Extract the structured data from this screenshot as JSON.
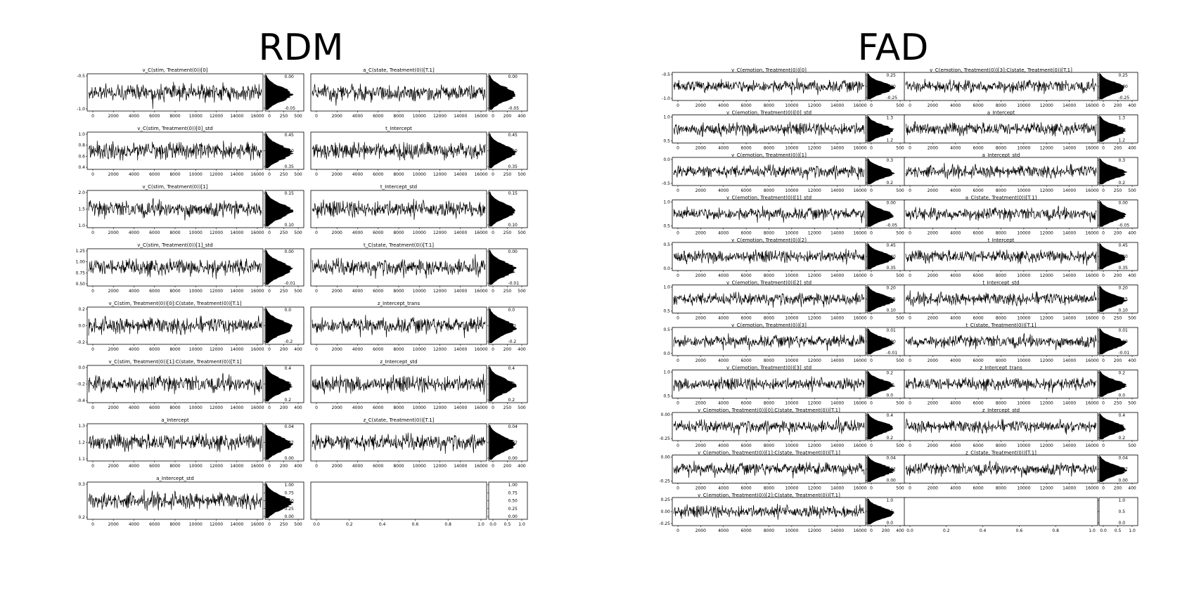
{
  "panels": [
    {
      "id": "rdm",
      "title": "RDM",
      "trace_xticks": [
        "0",
        "2000",
        "4000",
        "6000",
        "8000",
        "10000",
        "12000",
        "14000",
        "16000"
      ],
      "rows": [
        [
          {
            "title": "v_C(stim, Treatment(0))[0]",
            "yticks": [
              "-0.5",
              "-1.0"
            ],
            "hist_yticks": [
              "0.00",
              "-0.05"
            ],
            "hist_xticks": [
              "0",
              "250",
              "500"
            ]
          },
          {
            "title": "a_C(state, Treatment(0))[T.1]",
            "yticks": [],
            "hist_yticks": [
              "0.00",
              "-0.05"
            ],
            "hist_xticks": [
              "0",
              "200",
              "400"
            ]
          }
        ],
        [
          {
            "title": "v_C(stim, Treatment(0))[0]_std",
            "yticks": [
              "1.0",
              "0.8",
              "0.6",
              "0.4"
            ],
            "hist_yticks": [
              "0.45",
              "0.40",
              "0.35"
            ],
            "hist_xticks": [
              "0",
              "250",
              "500"
            ]
          },
          {
            "title": "t_Intercept",
            "yticks": [],
            "hist_yticks": [
              "0.45",
              "0.40",
              "0.35"
            ],
            "hist_xticks": [
              "0",
              "250",
              "500"
            ]
          }
        ],
        [
          {
            "title": "v_C(stim, Treatment(0))[1]",
            "yticks": [
              "2.0",
              "1.5",
              "1.0"
            ],
            "hist_yticks": [
              "0.15",
              "0.10"
            ],
            "hist_xticks": [
              "0",
              "250",
              "500"
            ]
          },
          {
            "title": "t_Intercept_std",
            "yticks": [],
            "hist_yticks": [
              "0.15",
              "0.10"
            ],
            "hist_xticks": [
              "0",
              "250",
              "500"
            ]
          }
        ],
        [
          {
            "title": "v_C(stim, Treatment(0))[1]_std",
            "yticks": [
              "1.25",
              "1.00",
              "0.75",
              "0.50"
            ],
            "hist_yticks": [
              "0.00",
              "-0.01"
            ],
            "hist_xticks": [
              "0",
              "250",
              "500"
            ]
          },
          {
            "title": "t_C(state, Treatment(0))[T.1]",
            "yticks": [],
            "hist_yticks": [
              "0.00",
              "-0.01"
            ],
            "hist_xticks": [
              "0",
              "250",
              "500"
            ]
          }
        ],
        [
          {
            "title": "v_C(stim, Treatment(0))[0]:C(state, Treatment(0))[T.1]",
            "yticks": [
              "0.2",
              "0.0",
              "-0.2"
            ],
            "hist_yticks": [
              "0.0",
              "-0.1",
              "-0.2"
            ],
            "hist_xticks": [
              "0",
              "200",
              "400"
            ]
          },
          {
            "title": "z_Intercept_trans",
            "yticks": [],
            "hist_yticks": [
              "0.0",
              "-0.1",
              "-0.2"
            ],
            "hist_xticks": [
              "0",
              "200",
              "400"
            ]
          }
        ],
        [
          {
            "title": "v_C(stim, Treatment(0))[1]:C(state, Treatment(0))[T.1]",
            "yticks": [
              "0.0",
              "-0.2",
              "-0.4"
            ],
            "hist_yticks": [
              "0.4",
              "0.3",
              "0.2"
            ],
            "hist_xticks": [
              "0",
              "200",
              "400"
            ]
          },
          {
            "title": "z_Intercept_std",
            "yticks": [],
            "hist_yticks": [
              "0.4",
              "0.3",
              "0.2"
            ],
            "hist_xticks": [
              "0",
              "250",
              "500"
            ]
          }
        ],
        [
          {
            "title": "a_Intercept",
            "yticks": [
              "1.3",
              "1.2",
              "1.1"
            ],
            "hist_yticks": [
              "0.04",
              "0.02",
              "0.00"
            ],
            "hist_xticks": [
              "0",
              "200",
              "400"
            ]
          },
          {
            "title": "z_C(state, Treatment(0))[T.1]",
            "yticks": [],
            "hist_yticks": [
              "0.04",
              "0.02",
              "0.00"
            ],
            "hist_xticks": [
              "0",
              "200",
              "400"
            ]
          }
        ],
        [
          {
            "title": "a_Intercept_std",
            "yticks": [
              "0.3",
              "0.2"
            ],
            "hist_yticks": [
              "1.00",
              "0.75",
              "0.50",
              "0.25",
              "0.00"
            ],
            "hist_xticks": [
              "0",
              "250",
              "500"
            ]
          },
          {
            "title": "",
            "empty": true,
            "yticks": [],
            "hist_yticks": [
              "1.00",
              "0.75",
              "0.50",
              "0.25",
              "0.00"
            ],
            "hist_xticks": [
              "0.0",
              "0.5",
              "1.0"
            ],
            "empty_xticks": [
              "0.0",
              "0.2",
              "0.4",
              "0.6",
              "0.8",
              "1.0"
            ]
          }
        ]
      ]
    },
    {
      "id": "fad",
      "title": "FAD",
      "trace_xticks": [
        "0",
        "2000",
        "4000",
        "6000",
        "8000",
        "10000",
        "12000",
        "14000",
        "16000"
      ],
      "rows": [
        [
          {
            "title": "v_C(emotion, Treatment(0))[0]",
            "yticks": [
              "-0.5",
              "-1.0"
            ],
            "hist_yticks": [
              "0.25",
              "0.00",
              "-0.25"
            ],
            "hist_xticks": [
              "0",
              "500"
            ]
          },
          {
            "title": "v_C(emotion, Treatment(0))[3]:C(state, Treatment(0))[T.1]",
            "yticks": [],
            "hist_yticks": [
              "0.25",
              "0.00",
              "-0.25"
            ],
            "hist_xticks": [
              "0",
              "200",
              "400"
            ]
          }
        ],
        [
          {
            "title": "v_C(emotion, Treatment(0))[0]_std",
            "yticks": [
              "1.0",
              "0.5"
            ],
            "hist_yticks": [
              "1.3",
              "1.2"
            ],
            "hist_xticks": [
              "0",
              "500"
            ]
          },
          {
            "title": "a_Intercept",
            "yticks": [],
            "hist_yticks": [
              "1.3",
              "1.2"
            ],
            "hist_xticks": [
              "0",
              "200",
              "400"
            ]
          }
        ],
        [
          {
            "title": "v_C(emotion, Treatment(0))[1]",
            "yticks": [
              "0.0",
              "-0.5"
            ],
            "hist_yticks": [
              "0.3",
              "0.2"
            ],
            "hist_xticks": [
              "0",
              "500"
            ]
          },
          {
            "title": "a_Intercept_std",
            "yticks": [],
            "hist_yticks": [
              "0.3",
              "0.2"
            ],
            "hist_xticks": [
              "0",
              "250",
              "500"
            ]
          }
        ],
        [
          {
            "title": "v_C(emotion, Treatment(0))[1]_std",
            "yticks": [
              "1.0",
              "0.5"
            ],
            "hist_yticks": [
              "0.00",
              "-0.05"
            ],
            "hist_xticks": [
              "0",
              "500"
            ]
          },
          {
            "title": "a_C(state, Treatment(0))[T.1]",
            "yticks": [],
            "hist_yticks": [
              "0.00",
              "-0.05"
            ],
            "hist_xticks": [
              "0",
              "200",
              "400"
            ]
          }
        ],
        [
          {
            "title": "v_C(emotion, Treatment(0))[2]",
            "yticks": [
              "0.5",
              "0.0"
            ],
            "hist_yticks": [
              "0.45",
              "0.40",
              "0.35"
            ],
            "hist_xticks": [
              "0",
              "500"
            ]
          },
          {
            "title": "t_Intercept",
            "yticks": [],
            "hist_yticks": [
              "0.45",
              "0.40",
              "0.35"
            ],
            "hist_xticks": [
              "0",
              "200",
              "400"
            ]
          }
        ],
        [
          {
            "title": "v_C(emotion, Treatment(0))[2]_std",
            "yticks": [
              "1.0",
              "0.5"
            ],
            "hist_yticks": [
              "0.20",
              "0.15",
              "0.10"
            ],
            "hist_xticks": [
              "0",
              "500"
            ]
          },
          {
            "title": "t_Intercept_std",
            "yticks": [],
            "hist_yticks": [
              "0.20",
              "0.15",
              "0.10"
            ],
            "hist_xticks": [
              "0",
              "250",
              "500"
            ]
          }
        ],
        [
          {
            "title": "v_C(emotion, Treatment(0))[3]",
            "yticks": [
              "0.5",
              "0.0"
            ],
            "hist_yticks": [
              "0.01",
              "0.00",
              "-0.01"
            ],
            "hist_xticks": [
              "0",
              "500"
            ]
          },
          {
            "title": "t_C(state, Treatment(0))[T.1]",
            "yticks": [],
            "hist_yticks": [
              "0.01",
              "0.00",
              "-0.01"
            ],
            "hist_xticks": [
              "0",
              "200",
              "400"
            ]
          }
        ],
        [
          {
            "title": "v_C(emotion, Treatment(0))[3]_std",
            "yticks": [
              "1.0",
              "0.5"
            ],
            "hist_yticks": [
              "0.2",
              "0.0"
            ],
            "hist_xticks": [
              "0",
              "500"
            ]
          },
          {
            "title": "z_Intercept_trans",
            "yticks": [],
            "hist_yticks": [
              "0.2",
              "0.0"
            ],
            "hist_xticks": [
              "0",
              "250",
              "500"
            ]
          }
        ],
        [
          {
            "title": "v_C(emotion, Treatment(0))[0]:C(state, Treatment(0))[T.1]",
            "yticks": [
              "0.00",
              "-0.25"
            ],
            "hist_yticks": [
              "0.4",
              "0.2"
            ],
            "hist_xticks": [
              "0",
              "500"
            ]
          },
          {
            "title": "z_Intercept_std",
            "yticks": [],
            "hist_yticks": [
              "0.4",
              "0.2"
            ],
            "hist_xticks": [
              "0",
              "500"
            ]
          }
        ],
        [
          {
            "title": "v_C(emotion, Treatment(0))[1]:C(state, Treatment(0))[T.1]",
            "yticks": [
              "0.00",
              "-0.25"
            ],
            "hist_yticks": [
              "0.04",
              "0.02",
              "0.00"
            ],
            "hist_xticks": [
              "0",
              "500"
            ]
          },
          {
            "title": "z_C(state, Treatment(0))[T.1]",
            "yticks": [],
            "hist_yticks": [
              "0.04",
              "0.02",
              "0.00"
            ],
            "hist_xticks": [
              "0",
              "200",
              "400"
            ]
          }
        ],
        [
          {
            "title": "v_C(emotion, Treatment(0))[2]:C(state, Treatment(0))[T.1]",
            "yticks": [
              "0.25",
              "0.00",
              "-0.25"
            ],
            "hist_yticks": [
              "1.0",
              "0.5",
              "0.0"
            ],
            "hist_xticks": [
              "0",
              "200",
              "400"
            ]
          },
          {
            "title": "",
            "empty": true,
            "yticks": [],
            "hist_yticks": [
              "1.0",
              "0.5",
              "0.0"
            ],
            "hist_xticks": [
              "0.0",
              "0.5",
              "1.0"
            ],
            "empty_xticks": [
              "0.0",
              "0.2",
              "0.4",
              "0.6",
              "0.8",
              "1.0"
            ]
          }
        ]
      ]
    }
  ],
  "chart_data": [
    {
      "type": "line",
      "title": "RDM",
      "description_of_traces": "MCMC trace plots (16000 samples each) with marginal histograms",
      "x_range": [
        0,
        16000
      ],
      "series": [
        {
          "name": "v_C(stim, Treatment(0))[0]",
          "center": -1.0
        },
        {
          "name": "a_C(state, Treatment(0))[T.1]",
          "center": -0.04
        },
        {
          "name": "v_C(stim, Treatment(0))[0]_std",
          "center": 0.6
        },
        {
          "name": "t_Intercept",
          "center": 0.4
        },
        {
          "name": "v_C(stim, Treatment(0))[1]",
          "center": 1.35
        },
        {
          "name": "t_Intercept_std",
          "center": 0.1
        },
        {
          "name": "v_C(stim, Treatment(0))[1]_std",
          "center": 0.75
        },
        {
          "name": "t_C(state, Treatment(0))[T.1]",
          "center": 0.0
        },
        {
          "name": "v_C(stim, Treatment(0))[0]:C(state, Treatment(0))[T.1]",
          "center": 0.0
        },
        {
          "name": "z_Intercept_trans",
          "center": -0.1
        },
        {
          "name": "v_C(stim, Treatment(0))[1]:C(state, Treatment(0))[T.1]",
          "center": -0.2
        },
        {
          "name": "z_Intercept_std",
          "center": 0.25
        },
        {
          "name": "a_Intercept",
          "center": 1.25
        },
        {
          "name": "z_C(state, Treatment(0))[T.1]",
          "center": 0.02
        },
        {
          "name": "a_Intercept_std",
          "center": 0.2
        }
      ]
    },
    {
      "type": "line",
      "title": "FAD",
      "description_of_traces": "MCMC trace plots (16000 samples each) with marginal histograms",
      "x_range": [
        0,
        16000
      ],
      "series": [
        {
          "name": "v_C(emotion, Treatment(0))[0]",
          "center": -0.8
        },
        {
          "name": "v_C(emotion, Treatment(0))[3]:C(state, Treatment(0))[T.1]",
          "center": 0.0
        },
        {
          "name": "v_C(emotion, Treatment(0))[0]_std",
          "center": 0.6
        },
        {
          "name": "a_Intercept",
          "center": 1.22
        },
        {
          "name": "v_C(emotion, Treatment(0))[1]",
          "center": -0.3
        },
        {
          "name": "a_Intercept_std",
          "center": 0.2
        },
        {
          "name": "v_C(emotion, Treatment(0))[1]_std",
          "center": 0.55
        },
        {
          "name": "a_C(state, Treatment(0))[T.1]",
          "center": -0.02
        },
        {
          "name": "v_C(emotion, Treatment(0))[2]",
          "center": 0.1
        },
        {
          "name": "t_Intercept",
          "center": 0.4
        },
        {
          "name": "v_C(emotion, Treatment(0))[2]_std",
          "center": 0.6
        },
        {
          "name": "t_Intercept_std",
          "center": 0.13
        },
        {
          "name": "v_C(emotion, Treatment(0))[3]",
          "center": 0.25
        },
        {
          "name": "t_C(state, Treatment(0))[T.1]",
          "center": 0.0
        },
        {
          "name": "v_C(emotion, Treatment(0))[3]_std",
          "center": 0.65
        },
        {
          "name": "z_Intercept_trans",
          "center": 0.0
        },
        {
          "name": "v_C(emotion, Treatment(0))[0]:C(state, Treatment(0))[T.1]",
          "center": -0.1
        },
        {
          "name": "z_Intercept_std",
          "center": 0.2
        },
        {
          "name": "v_C(emotion, Treatment(0))[1]:C(state, Treatment(0))[T.1]",
          "center": -0.1
        },
        {
          "name": "z_C(state, Treatment(0))[T.1]",
          "center": 0.02
        },
        {
          "name": "v_C(emotion, Treatment(0))[2]:C(state, Treatment(0))[T.1]",
          "center": 0.0
        }
      ]
    }
  ]
}
